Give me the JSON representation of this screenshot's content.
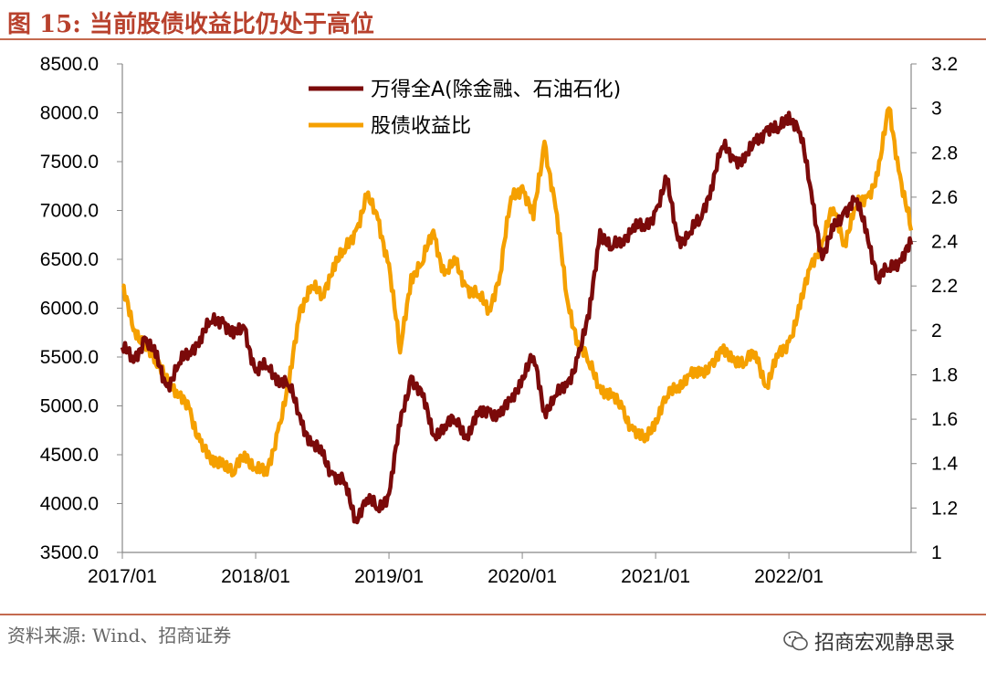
{
  "header": {
    "title": "图 15:  当前股债收益比仍处于高位"
  },
  "footer": {
    "source": "资料来源:  Wind、招商证券",
    "watermark": "招商宏观静思录"
  },
  "colors": {
    "wind_a": "#7b0a0a",
    "ratio": "#f5a000",
    "title": "#b8412d",
    "rule": "#c46a4f"
  },
  "chart_data": {
    "type": "line",
    "title": "",
    "x_tick_labels": [
      "2017/01",
      "2018/01",
      "2019/01",
      "2020/01",
      "2021/01",
      "2022/01"
    ],
    "x_range": [
      "2017/01",
      "2022/12"
    ],
    "y_left": {
      "range": [
        3500,
        8500
      ],
      "ticks": [
        "3500.0",
        "4000.0",
        "4500.0",
        "5000.0",
        "5500.0",
        "6000.0",
        "6500.0",
        "7000.0",
        "7500.0",
        "8000.0",
        "8500.0"
      ]
    },
    "y_right": {
      "range": [
        1,
        3.2
      ],
      "ticks": [
        "1",
        "1.2",
        "1.4",
        "1.6",
        "1.8",
        "2",
        "2.2",
        "2.4",
        "2.6",
        "2.8",
        "3",
        "3.2"
      ]
    },
    "grid": false,
    "legend": "top-center",
    "series": [
      {
        "name": "万得全A(除金融、石油石化)",
        "axis": "left",
        "x": [
          "2017-01",
          "2017-02",
          "2017-03",
          "2017-04",
          "2017-05",
          "2017-06",
          "2017-07",
          "2017-08",
          "2017-09",
          "2017-10",
          "2017-11",
          "2017-12",
          "2018-01",
          "2018-02",
          "2018-03",
          "2018-04",
          "2018-05",
          "2018-06",
          "2018-07",
          "2018-08",
          "2018-09",
          "2018-10",
          "2018-11",
          "2018-12",
          "2019-01",
          "2019-02",
          "2019-03",
          "2019-04",
          "2019-05",
          "2019-06",
          "2019-07",
          "2019-08",
          "2019-09",
          "2019-10",
          "2019-11",
          "2019-12",
          "2020-01",
          "2020-02",
          "2020-03",
          "2020-04",
          "2020-05",
          "2020-06",
          "2020-07",
          "2020-08",
          "2020-09",
          "2020-10",
          "2020-11",
          "2020-12",
          "2021-01",
          "2021-02",
          "2021-03",
          "2021-04",
          "2021-05",
          "2021-06",
          "2021-07",
          "2021-08",
          "2021-09",
          "2021-10",
          "2021-11",
          "2021-12",
          "2022-01",
          "2022-02",
          "2022-03",
          "2022-04",
          "2022-05",
          "2022-06",
          "2022-07",
          "2022-08",
          "2022-09",
          "2022-10",
          "2022-11",
          "2022-12"
        ],
        "y": [
          5600,
          5450,
          5700,
          5500,
          5200,
          5400,
          5550,
          5700,
          5850,
          5900,
          5700,
          5800,
          5350,
          5400,
          5300,
          5200,
          4900,
          4600,
          4500,
          4300,
          4200,
          3850,
          4050,
          3950,
          4100,
          4800,
          5300,
          5100,
          4700,
          4800,
          4850,
          4700,
          4900,
          4950,
          4900,
          5050,
          5300,
          5500,
          4950,
          5100,
          5200,
          5500,
          5900,
          6800,
          6600,
          6700,
          6850,
          6800,
          7000,
          7300,
          6700,
          6750,
          6900,
          7250,
          7650,
          7550,
          7500,
          7700,
          7850,
          7800,
          8000,
          7800,
          7200,
          6500,
          6800,
          7000,
          7100,
          6800,
          6300,
          6400,
          6500,
          6650
        ]
      },
      {
        "name": "股债收益比",
        "axis": "right",
        "x": [
          "2017-01",
          "2017-02",
          "2017-03",
          "2017-04",
          "2017-05",
          "2017-06",
          "2017-07",
          "2017-08",
          "2017-09",
          "2017-10",
          "2017-11",
          "2017-12",
          "2018-01",
          "2018-02",
          "2018-03",
          "2018-04",
          "2018-05",
          "2018-06",
          "2018-07",
          "2018-08",
          "2018-09",
          "2018-10",
          "2018-11",
          "2018-12",
          "2019-01",
          "2019-02",
          "2019-03",
          "2019-04",
          "2019-05",
          "2019-06",
          "2019-07",
          "2019-08",
          "2019-09",
          "2019-10",
          "2019-11",
          "2019-12",
          "2020-01",
          "2020-02",
          "2020-03",
          "2020-04",
          "2020-05",
          "2020-06",
          "2020-07",
          "2020-08",
          "2020-09",
          "2020-10",
          "2020-11",
          "2020-12",
          "2021-01",
          "2021-02",
          "2021-03",
          "2021-04",
          "2021-05",
          "2021-06",
          "2021-07",
          "2021-08",
          "2021-09",
          "2021-10",
          "2021-11",
          "2021-12",
          "2022-01",
          "2022-02",
          "2022-03",
          "2022-04",
          "2022-05",
          "2022-06",
          "2022-07",
          "2022-08",
          "2022-09",
          "2022-10",
          "2022-11",
          "2022-12"
        ],
        "y": [
          2.2,
          2.0,
          1.95,
          1.85,
          1.8,
          1.7,
          1.65,
          1.5,
          1.4,
          1.42,
          1.35,
          1.45,
          1.38,
          1.35,
          1.55,
          1.75,
          2.1,
          2.2,
          2.15,
          2.3,
          2.35,
          2.45,
          2.6,
          2.5,
          2.3,
          1.9,
          2.25,
          2.3,
          2.45,
          2.25,
          2.3,
          2.2,
          2.15,
          2.1,
          2.25,
          2.6,
          2.65,
          2.5,
          2.85,
          2.55,
          2.15,
          1.95,
          1.85,
          1.75,
          1.7,
          1.65,
          1.55,
          1.5,
          1.6,
          1.7,
          1.75,
          1.8,
          1.8,
          1.85,
          1.9,
          1.88,
          1.85,
          1.9,
          1.75,
          1.88,
          1.95,
          2.1,
          2.3,
          2.4,
          2.55,
          2.4,
          2.55,
          2.6,
          2.7,
          3.0,
          2.7,
          2.45
        ]
      }
    ]
  }
}
